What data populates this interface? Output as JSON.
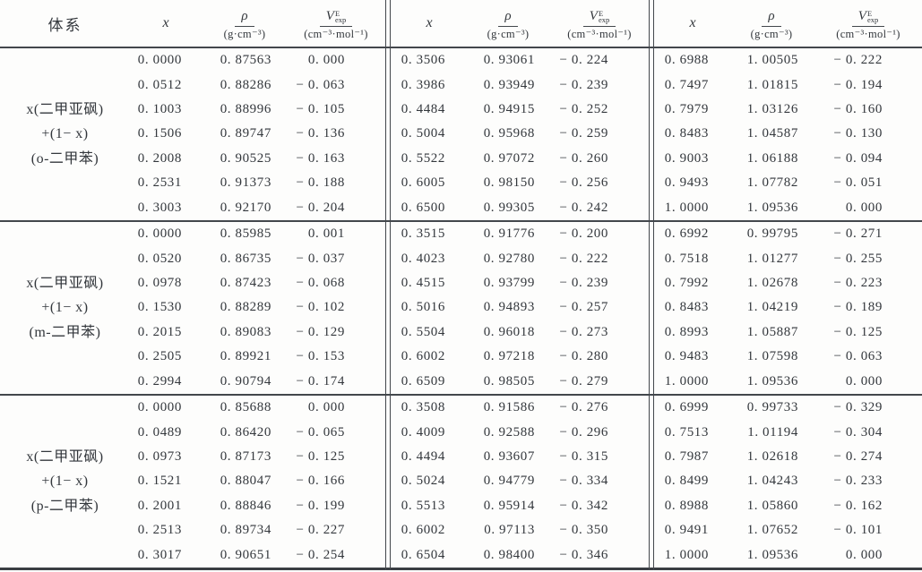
{
  "page": {
    "background": "#fdfdfc",
    "text_color": "#33373c",
    "rule_color": "#43474c"
  },
  "table": {
    "system_header": "体系",
    "headers": {
      "x": "x",
      "rho_symbol": "ρ",
      "rho_unit": "(g·cm⁻³)",
      "v_symbol": "V",
      "v_sup": "E",
      "v_sub": "exp",
      "v_unit": "(cm⁻³·mol⁻¹)"
    },
    "groups": [
      {
        "system_lines": [
          "x(二甲亚砜)",
          "+(1− x)",
          "(o-二甲苯)"
        ],
        "blocks": [
          {
            "rows": [
              {
                "x": "0.0000",
                "rho": "0.87563",
                "ve": "0.000"
              },
              {
                "x": "0.0512",
                "rho": "0.88286",
                "ve": "-0.063"
              },
              {
                "x": "0.1003",
                "rho": "0.88996",
                "ve": "-0.105"
              },
              {
                "x": "0.1506",
                "rho": "0.89747",
                "ve": "-0.136"
              },
              {
                "x": "0.2008",
                "rho": "0.90525",
                "ve": "-0.163"
              },
              {
                "x": "0.2531",
                "rho": "0.91373",
                "ve": "-0.188"
              },
              {
                "x": "0.3003",
                "rho": "0.92170",
                "ve": "-0.204"
              }
            ]
          },
          {
            "rows": [
              {
                "x": "0.3506",
                "rho": "0.93061",
                "ve": "-0.224"
              },
              {
                "x": "0.3986",
                "rho": "0.93949",
                "ve": "-0.239"
              },
              {
                "x": "0.4484",
                "rho": "0.94915",
                "ve": "-0.252"
              },
              {
                "x": "0.5004",
                "rho": "0.95968",
                "ve": "-0.259"
              },
              {
                "x": "0.5522",
                "rho": "0.97072",
                "ve": "-0.260"
              },
              {
                "x": "0.6005",
                "rho": "0.98150",
                "ve": "-0.256"
              },
              {
                "x": "0.6500",
                "rho": "0.99305",
                "ve": "-0.242"
              }
            ]
          },
          {
            "rows": [
              {
                "x": "0.6988",
                "rho": "1.00505",
                "ve": "-0.222"
              },
              {
                "x": "0.7497",
                "rho": "1.01815",
                "ve": "-0.194"
              },
              {
                "x": "0.7979",
                "rho": "1.03126",
                "ve": "-0.160"
              },
              {
                "x": "0.8483",
                "rho": "1.04587",
                "ve": "-0.130"
              },
              {
                "x": "0.9003",
                "rho": "1.06188",
                "ve": "-0.094"
              },
              {
                "x": "0.9493",
                "rho": "1.07782",
                "ve": "-0.051"
              },
              {
                "x": "1.0000",
                "rho": "1.09536",
                "ve": "0.000"
              }
            ]
          }
        ]
      },
      {
        "system_lines": [
          "x(二甲亚砜)",
          "+(1− x)",
          "(m-二甲苯)"
        ],
        "blocks": [
          {
            "rows": [
              {
                "x": "0.0000",
                "rho": "0.85985",
                "ve": "0.001"
              },
              {
                "x": "0.0520",
                "rho": "0.86735",
                "ve": "-0.037"
              },
              {
                "x": "0.0978",
                "rho": "0.87423",
                "ve": "-0.068"
              },
              {
                "x": "0.1530",
                "rho": "0.88289",
                "ve": "-0.102"
              },
              {
                "x": "0.2015",
                "rho": "0.89083",
                "ve": "-0.129"
              },
              {
                "x": "0.2505",
                "rho": "0.89921",
                "ve": "-0.153"
              },
              {
                "x": "0.2994",
                "rho": "0.90794",
                "ve": "-0.174"
              }
            ]
          },
          {
            "rows": [
              {
                "x": "0.3515",
                "rho": "0.91776",
                "ve": "-0.200"
              },
              {
                "x": "0.4023",
                "rho": "0.92780",
                "ve": "-0.222"
              },
              {
                "x": "0.4515",
                "rho": "0.93799",
                "ve": "-0.239"
              },
              {
                "x": "0.5016",
                "rho": "0.94893",
                "ve": "-0.257"
              },
              {
                "x": "0.5504",
                "rho": "0.96018",
                "ve": "-0.273"
              },
              {
                "x": "0.6002",
                "rho": "0.97218",
                "ve": "-0.280"
              },
              {
                "x": "0.6509",
                "rho": "0.98505",
                "ve": "-0.279"
              }
            ]
          },
          {
            "rows": [
              {
                "x": "0.6992",
                "rho": "0.99795",
                "ve": "-0.271"
              },
              {
                "x": "0.7518",
                "rho": "1.01277",
                "ve": "-0.255"
              },
              {
                "x": "0.7992",
                "rho": "1.02678",
                "ve": "-0.223"
              },
              {
                "x": "0.8483",
                "rho": "1.04219",
                "ve": "-0.189"
              },
              {
                "x": "0.8993",
                "rho": "1.05887",
                "ve": "-0.125"
              },
              {
                "x": "0.9483",
                "rho": "1.07598",
                "ve": "-0.063"
              },
              {
                "x": "1.0000",
                "rho": "1.09536",
                "ve": "0.000"
              }
            ]
          }
        ]
      },
      {
        "system_lines": [
          "x(二甲亚砜)",
          "+(1− x)",
          "(p-二甲苯)"
        ],
        "blocks": [
          {
            "rows": [
              {
                "x": "0.0000",
                "rho": "0.85688",
                "ve": "0.000"
              },
              {
                "x": "0.0489",
                "rho": "0.86420",
                "ve": "-0.065"
              },
              {
                "x": "0.0973",
                "rho": "0.87173",
                "ve": "-0.125"
              },
              {
                "x": "0.1521",
                "rho": "0.88047",
                "ve": "-0.166"
              },
              {
                "x": "0.2001",
                "rho": "0.88846",
                "ve": "-0.199"
              },
              {
                "x": "0.2513",
                "rho": "0.89734",
                "ve": "-0.227"
              },
              {
                "x": "0.3017",
                "rho": "0.90651",
                "ve": "-0.254"
              }
            ]
          },
          {
            "rows": [
              {
                "x": "0.3508",
                "rho": "0.91586",
                "ve": "-0.276"
              },
              {
                "x": "0.4009",
                "rho": "0.92588",
                "ve": "-0.296"
              },
              {
                "x": "0.4494",
                "rho": "0.93607",
                "ve": "-0.315"
              },
              {
                "x": "0.5024",
                "rho": "0.94779",
                "ve": "-0.334"
              },
              {
                "x": "0.5513",
                "rho": "0.95914",
                "ve": "-0.342"
              },
              {
                "x": "0.6002",
                "rho": "0.97113",
                "ve": "-0.350"
              },
              {
                "x": "0.6504",
                "rho": "0.98400",
                "ve": "-0.346"
              }
            ]
          },
          {
            "rows": [
              {
                "x": "0.6999",
                "rho": "0.99733",
                "ve": "-0.329"
              },
              {
                "x": "0.7513",
                "rho": "1.01194",
                "ve": "-0.304"
              },
              {
                "x": "0.7987",
                "rho": "1.02618",
                "ve": "-0.274"
              },
              {
                "x": "0.8499",
                "rho": "1.04243",
                "ve": "-0.233"
              },
              {
                "x": "0.8988",
                "rho": "1.05860",
                "ve": "-0.162"
              },
              {
                "x": "0.9491",
                "rho": "1.07652",
                "ve": "-0.101"
              },
              {
                "x": "1.0000",
                "rho": "1.09536",
                "ve": "0.000"
              }
            ]
          }
        ]
      }
    ]
  }
}
